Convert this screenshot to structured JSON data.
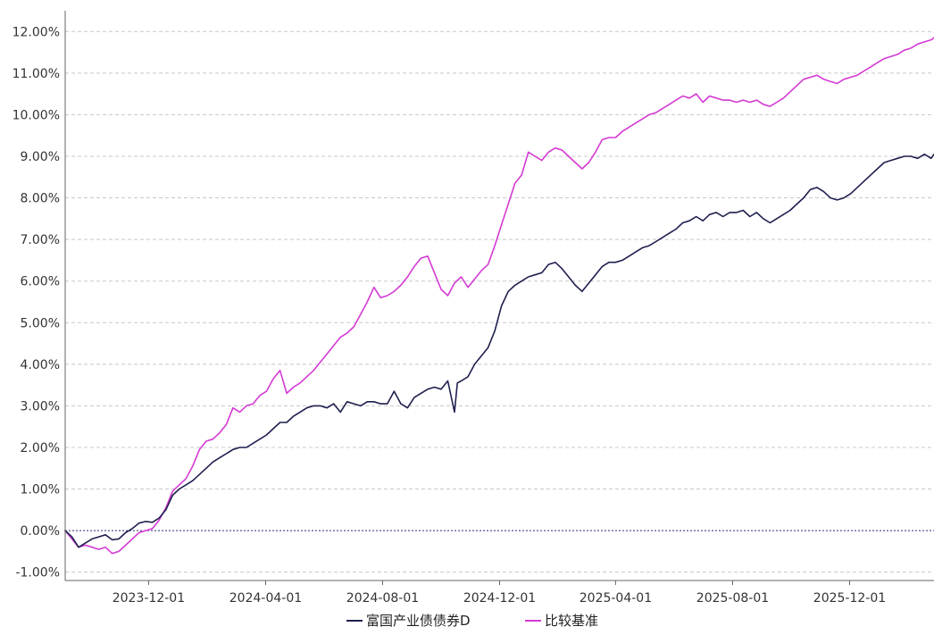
{
  "chart_data": {
    "type": "line",
    "title": "",
    "xlabel": "",
    "ylabel": "",
    "x_ticks": [
      "2023-12-01",
      "2024-04-01",
      "2024-08-01",
      "2024-12-01",
      "2025-04-01",
      "2025-08-01",
      "2025-12-01"
    ],
    "y_ticks": [
      "12.00%",
      "11.00%",
      "10.00%",
      "9.00%",
      "8.00%",
      "7.00%",
      "6.00%",
      "5.00%",
      "4.00%",
      "3.00%",
      "2.00%",
      "1.00%",
      "0.00%",
      "-1.00%"
    ],
    "xlim": [
      "2023-09-05",
      "2026-02-27"
    ],
    "ylim": [
      -1.2,
      12.5
    ],
    "grid": true,
    "legend_position": "bottom",
    "series": [
      {
        "name": "富国产业债债券D",
        "color": "#1f1f4f",
        "points": [
          [
            "2023-09-05",
            0.0
          ],
          [
            "2023-09-12",
            -0.15
          ],
          [
            "2023-09-19",
            -0.4
          ],
          [
            "2023-09-26",
            -0.3
          ],
          [
            "2023-10-03",
            -0.2
          ],
          [
            "2023-10-10",
            -0.15
          ],
          [
            "2023-10-17",
            -0.1
          ],
          [
            "2023-10-24",
            -0.22
          ],
          [
            "2023-10-31",
            -0.2
          ],
          [
            "2023-11-07",
            -0.05
          ],
          [
            "2023-11-14",
            0.05
          ],
          [
            "2023-11-21",
            0.18
          ],
          [
            "2023-11-28",
            0.22
          ],
          [
            "2023-12-05",
            0.2
          ],
          [
            "2023-12-12",
            0.3
          ],
          [
            "2023-12-19",
            0.5
          ],
          [
            "2023-12-26",
            0.85
          ],
          [
            "2024-01-02",
            1.0
          ],
          [
            "2024-01-09",
            1.1
          ],
          [
            "2024-01-16",
            1.2
          ],
          [
            "2024-01-23",
            1.35
          ],
          [
            "2024-01-30",
            1.5
          ],
          [
            "2024-02-06",
            1.65
          ],
          [
            "2024-02-13",
            1.75
          ],
          [
            "2024-02-20",
            1.85
          ],
          [
            "2024-02-27",
            1.95
          ],
          [
            "2024-03-05",
            2.0
          ],
          [
            "2024-03-12",
            2.0
          ],
          [
            "2024-03-19",
            2.1
          ],
          [
            "2024-03-26",
            2.2
          ],
          [
            "2024-04-02",
            2.3
          ],
          [
            "2024-04-09",
            2.45
          ],
          [
            "2024-04-16",
            2.6
          ],
          [
            "2024-04-23",
            2.6
          ],
          [
            "2024-04-30",
            2.75
          ],
          [
            "2024-05-07",
            2.85
          ],
          [
            "2024-05-14",
            2.95
          ],
          [
            "2024-05-21",
            3.0
          ],
          [
            "2024-05-28",
            3.0
          ],
          [
            "2024-06-04",
            2.95
          ],
          [
            "2024-06-11",
            3.05
          ],
          [
            "2024-06-18",
            2.85
          ],
          [
            "2024-06-25",
            3.1
          ],
          [
            "2024-07-02",
            3.05
          ],
          [
            "2024-07-09",
            3.0
          ],
          [
            "2024-07-16",
            3.1
          ],
          [
            "2024-07-23",
            3.1
          ],
          [
            "2024-07-30",
            3.05
          ],
          [
            "2024-08-06",
            3.05
          ],
          [
            "2024-08-13",
            3.35
          ],
          [
            "2024-08-20",
            3.05
          ],
          [
            "2024-08-27",
            2.95
          ],
          [
            "2024-09-03",
            3.2
          ],
          [
            "2024-09-10",
            3.3
          ],
          [
            "2024-09-17",
            3.4
          ],
          [
            "2024-09-24",
            3.45
          ],
          [
            "2024-10-01",
            3.4
          ],
          [
            "2024-10-08",
            3.6
          ],
          [
            "2024-10-15",
            2.85
          ],
          [
            "2024-10-18",
            3.55
          ],
          [
            "2024-10-22",
            3.6
          ],
          [
            "2024-10-29",
            3.7
          ],
          [
            "2024-11-05",
            4.0
          ],
          [
            "2024-11-12",
            4.2
          ],
          [
            "2024-11-19",
            4.4
          ],
          [
            "2024-11-26",
            4.8
          ],
          [
            "2024-12-03",
            5.4
          ],
          [
            "2024-12-10",
            5.75
          ],
          [
            "2024-12-17",
            5.9
          ],
          [
            "2024-12-24",
            6.0
          ],
          [
            "2024-12-31",
            6.1
          ],
          [
            "2025-01-07",
            6.15
          ],
          [
            "2025-01-14",
            6.2
          ],
          [
            "2025-01-21",
            6.4
          ],
          [
            "2025-01-28",
            6.45
          ],
          [
            "2025-02-04",
            6.3
          ],
          [
            "2025-02-11",
            6.1
          ],
          [
            "2025-02-18",
            5.9
          ],
          [
            "2025-02-25",
            5.75
          ],
          [
            "2025-03-04",
            5.95
          ],
          [
            "2025-03-11",
            6.15
          ],
          [
            "2025-03-18",
            6.35
          ],
          [
            "2025-03-25",
            6.45
          ],
          [
            "2025-04-01",
            6.45
          ],
          [
            "2025-04-08",
            6.5
          ],
          [
            "2025-04-15",
            6.6
          ],
          [
            "2025-04-22",
            6.7
          ],
          [
            "2025-04-29",
            6.8
          ],
          [
            "2025-05-06",
            6.85
          ],
          [
            "2025-05-13",
            6.95
          ],
          [
            "2025-05-20",
            7.05
          ],
          [
            "2025-05-27",
            7.15
          ],
          [
            "2025-06-03",
            7.25
          ],
          [
            "2025-06-10",
            7.4
          ],
          [
            "2025-06-17",
            7.45
          ],
          [
            "2025-06-24",
            7.55
          ],
          [
            "2025-07-01",
            7.45
          ],
          [
            "2025-07-08",
            7.6
          ],
          [
            "2025-07-15",
            7.65
          ],
          [
            "2025-07-22",
            7.55
          ],
          [
            "2025-07-29",
            7.65
          ],
          [
            "2025-08-05",
            7.65
          ],
          [
            "2025-08-12",
            7.7
          ],
          [
            "2025-08-19",
            7.55
          ],
          [
            "2025-08-26",
            7.65
          ],
          [
            "2025-09-02",
            7.5
          ],
          [
            "2025-09-09",
            7.4
          ],
          [
            "2025-09-16",
            7.5
          ],
          [
            "2025-09-23",
            7.6
          ],
          [
            "2025-09-30",
            7.7
          ],
          [
            "2025-10-07",
            7.85
          ],
          [
            "2025-10-14",
            8.0
          ],
          [
            "2025-10-21",
            8.2
          ],
          [
            "2025-10-28",
            8.25
          ],
          [
            "2025-11-04",
            8.15
          ],
          [
            "2025-11-11",
            8.0
          ],
          [
            "2025-11-18",
            7.95
          ],
          [
            "2025-11-25",
            8.0
          ],
          [
            "2025-12-02",
            8.1
          ],
          [
            "2025-12-09",
            8.25
          ],
          [
            "2025-12-16",
            8.4
          ],
          [
            "2025-12-23",
            8.55
          ],
          [
            "2025-12-30",
            8.7
          ],
          [
            "2026-01-06",
            8.85
          ],
          [
            "2026-01-13",
            8.9
          ],
          [
            "2026-01-20",
            8.95
          ],
          [
            "2026-01-27",
            9.0
          ],
          [
            "2026-02-03",
            9.0
          ],
          [
            "2026-02-10",
            8.95
          ],
          [
            "2026-02-17",
            9.05
          ],
          [
            "2026-02-24",
            8.95
          ],
          [
            "2026-02-27",
            9.05
          ]
        ]
      },
      {
        "name": "比较基准",
        "color": "#d43ad4",
        "points": [
          [
            "2023-09-05",
            0.0
          ],
          [
            "2023-09-12",
            -0.2
          ],
          [
            "2023-09-19",
            -0.4
          ],
          [
            "2023-09-26",
            -0.35
          ],
          [
            "2023-10-03",
            -0.4
          ],
          [
            "2023-10-10",
            -0.45
          ],
          [
            "2023-10-17",
            -0.4
          ],
          [
            "2023-10-24",
            -0.55
          ],
          [
            "2023-10-31",
            -0.5
          ],
          [
            "2023-11-07",
            -0.35
          ],
          [
            "2023-11-14",
            -0.2
          ],
          [
            "2023-11-21",
            -0.05
          ],
          [
            "2023-11-28",
            0.0
          ],
          [
            "2023-12-05",
            0.05
          ],
          [
            "2023-12-12",
            0.25
          ],
          [
            "2023-12-19",
            0.55
          ],
          [
            "2023-12-26",
            0.95
          ],
          [
            "2024-01-02",
            1.1
          ],
          [
            "2024-01-09",
            1.25
          ],
          [
            "2024-01-16",
            1.55
          ],
          [
            "2024-01-23",
            1.95
          ],
          [
            "2024-01-30",
            2.15
          ],
          [
            "2024-02-06",
            2.2
          ],
          [
            "2024-02-13",
            2.35
          ],
          [
            "2024-02-20",
            2.55
          ],
          [
            "2024-02-27",
            2.95
          ],
          [
            "2024-03-05",
            2.85
          ],
          [
            "2024-03-12",
            3.0
          ],
          [
            "2024-03-19",
            3.05
          ],
          [
            "2024-03-26",
            3.25
          ],
          [
            "2024-04-02",
            3.35
          ],
          [
            "2024-04-09",
            3.65
          ],
          [
            "2024-04-16",
            3.85
          ],
          [
            "2024-04-23",
            3.3
          ],
          [
            "2024-04-30",
            3.45
          ],
          [
            "2024-05-07",
            3.55
          ],
          [
            "2024-05-14",
            3.7
          ],
          [
            "2024-05-21",
            3.85
          ],
          [
            "2024-05-28",
            4.05
          ],
          [
            "2024-06-04",
            4.25
          ],
          [
            "2024-06-11",
            4.45
          ],
          [
            "2024-06-18",
            4.65
          ],
          [
            "2024-06-25",
            4.75
          ],
          [
            "2024-07-02",
            4.9
          ],
          [
            "2024-07-09",
            5.2
          ],
          [
            "2024-07-16",
            5.5
          ],
          [
            "2024-07-23",
            5.85
          ],
          [
            "2024-07-30",
            5.6
          ],
          [
            "2024-08-06",
            5.65
          ],
          [
            "2024-08-13",
            5.75
          ],
          [
            "2024-08-20",
            5.9
          ],
          [
            "2024-08-27",
            6.1
          ],
          [
            "2024-09-03",
            6.35
          ],
          [
            "2024-09-10",
            6.55
          ],
          [
            "2024-09-17",
            6.6
          ],
          [
            "2024-09-24",
            6.2
          ],
          [
            "2024-10-01",
            5.8
          ],
          [
            "2024-10-08",
            5.65
          ],
          [
            "2024-10-15",
            5.95
          ],
          [
            "2024-10-22",
            6.1
          ],
          [
            "2024-10-29",
            5.85
          ],
          [
            "2024-11-05",
            6.05
          ],
          [
            "2024-11-12",
            6.25
          ],
          [
            "2024-11-19",
            6.4
          ],
          [
            "2024-11-26",
            6.85
          ],
          [
            "2024-12-03",
            7.35
          ],
          [
            "2024-12-10",
            7.85
          ],
          [
            "2024-12-17",
            8.35
          ],
          [
            "2024-12-24",
            8.55
          ],
          [
            "2024-12-31",
            9.1
          ],
          [
            "2025-01-07",
            9.0
          ],
          [
            "2025-01-14",
            8.9
          ],
          [
            "2025-01-21",
            9.1
          ],
          [
            "2025-01-28",
            9.2
          ],
          [
            "2025-02-04",
            9.15
          ],
          [
            "2025-02-11",
            9.0
          ],
          [
            "2025-02-18",
            8.85
          ],
          [
            "2025-02-25",
            8.7
          ],
          [
            "2025-03-04",
            8.85
          ],
          [
            "2025-03-11",
            9.1
          ],
          [
            "2025-03-18",
            9.4
          ],
          [
            "2025-03-25",
            9.45
          ],
          [
            "2025-04-01",
            9.45
          ],
          [
            "2025-04-08",
            9.6
          ],
          [
            "2025-04-15",
            9.7
          ],
          [
            "2025-04-22",
            9.8
          ],
          [
            "2025-04-29",
            9.9
          ],
          [
            "2025-05-06",
            10.0
          ],
          [
            "2025-05-13",
            10.05
          ],
          [
            "2025-05-20",
            10.15
          ],
          [
            "2025-05-27",
            10.25
          ],
          [
            "2025-06-03",
            10.35
          ],
          [
            "2025-06-10",
            10.45
          ],
          [
            "2025-06-17",
            10.4
          ],
          [
            "2025-06-24",
            10.5
          ],
          [
            "2025-07-01",
            10.3
          ],
          [
            "2025-07-08",
            10.45
          ],
          [
            "2025-07-15",
            10.4
          ],
          [
            "2025-07-22",
            10.35
          ],
          [
            "2025-07-29",
            10.35
          ],
          [
            "2025-08-05",
            10.3
          ],
          [
            "2025-08-12",
            10.35
          ],
          [
            "2025-08-19",
            10.3
          ],
          [
            "2025-08-26",
            10.35
          ],
          [
            "2025-09-02",
            10.25
          ],
          [
            "2025-09-09",
            10.2
          ],
          [
            "2025-09-16",
            10.3
          ],
          [
            "2025-09-23",
            10.4
          ],
          [
            "2025-09-30",
            10.55
          ],
          [
            "2025-10-07",
            10.7
          ],
          [
            "2025-10-14",
            10.85
          ],
          [
            "2025-10-21",
            10.9
          ],
          [
            "2025-10-28",
            10.95
          ],
          [
            "2025-11-04",
            10.85
          ],
          [
            "2025-11-11",
            10.8
          ],
          [
            "2025-11-18",
            10.75
          ],
          [
            "2025-11-25",
            10.85
          ],
          [
            "2025-12-02",
            10.9
          ],
          [
            "2025-12-09",
            10.95
          ],
          [
            "2025-12-16",
            11.05
          ],
          [
            "2025-12-23",
            11.15
          ],
          [
            "2025-12-30",
            11.25
          ],
          [
            "2026-01-06",
            11.35
          ],
          [
            "2026-01-13",
            11.4
          ],
          [
            "2026-01-20",
            11.45
          ],
          [
            "2026-01-27",
            11.55
          ],
          [
            "2026-02-03",
            11.6
          ],
          [
            "2026-02-10",
            11.7
          ],
          [
            "2026-02-17",
            11.75
          ],
          [
            "2026-02-24",
            11.8
          ],
          [
            "2026-02-27",
            11.85
          ]
        ]
      }
    ]
  }
}
